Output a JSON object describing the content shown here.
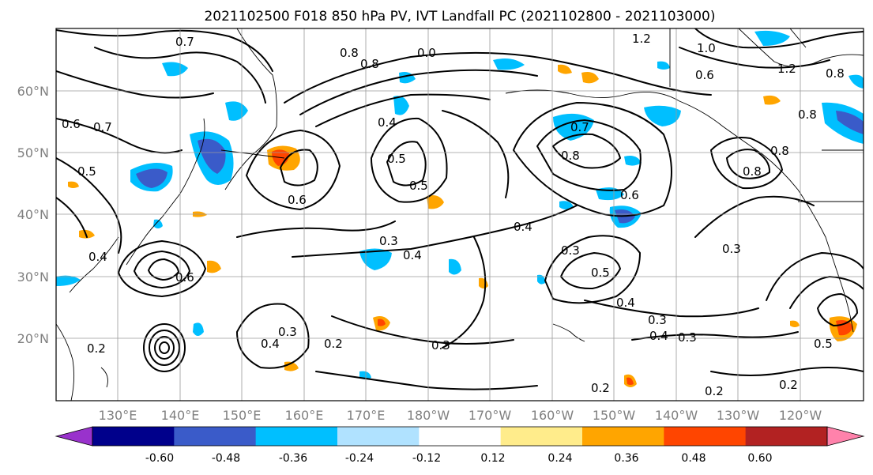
{
  "title": "2021102500 F018 850 hPa PV, IVT Landfall PC (2021102800 - 2021103000)",
  "lat_labels": [
    "60°N",
    "50°N",
    "40°N",
    "30°N",
    "20°N"
  ],
  "lon_labels": [
    "130°E",
    "140°E",
    "150°E",
    "160°E",
    "170°E",
    "180°W",
    "170°W",
    "160°W",
    "150°W",
    "140°W",
    "130°W",
    "120°W"
  ],
  "colorbar": {
    "colors": [
      "#9932cc",
      "#00008b",
      "#3a5bc9",
      "#00bfff",
      "#b0e2ff",
      "#ffffff",
      "#ffec8b",
      "#ffa500",
      "#ff4500",
      "#b22222",
      "#ff82ab"
    ],
    "tick_labels": [
      "-0.60",
      "-0.48",
      "-0.36",
      "-0.24",
      "-0.12",
      "0.12",
      "0.24",
      "0.36",
      "0.48",
      "0.60"
    ]
  },
  "contour_labels": [
    "0.7",
    "0.8",
    "1.2",
    "1.0",
    "0.6",
    "1.2",
    "0.8",
    "0.8",
    "0.8",
    "0.4",
    "0.0",
    "0.6",
    "0.7",
    "0.5",
    "0.5",
    "0.6",
    "0.5",
    "0.7",
    "0.8",
    "0.6",
    "0.8",
    "0.8",
    "0.4",
    "0.3",
    "0.4",
    "0.3",
    "0.5",
    "0.4",
    "0.3",
    "0.6",
    "0.4",
    "0.2",
    "0.4",
    "0.3",
    "0.3",
    "0.2",
    "0.4",
    "0.3",
    "0.3",
    "0.2",
    "0.2",
    "0.2",
    "0.5"
  ]
}
